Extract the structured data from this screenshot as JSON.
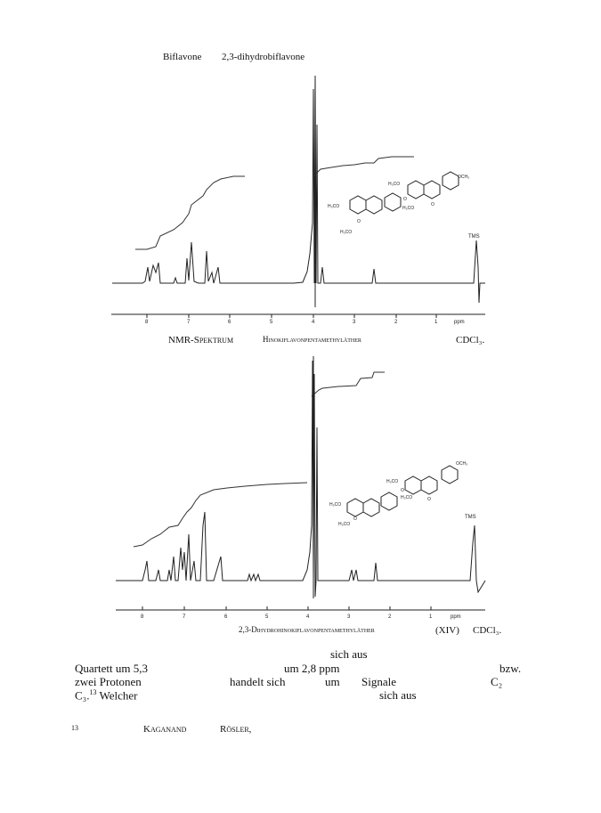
{
  "header": {
    "left": "Biflavone",
    "right": "2,3-dihydrobiflavone"
  },
  "figure1": {
    "caption_a": "NMR-Spektrum",
    "caption_b": "Hinokiflavonpentamethyläther",
    "caption_c": "CDCl₃.",
    "ticks": [
      "8",
      "7",
      "6",
      "5",
      "4",
      "3",
      "2",
      "1",
      "ppm"
    ],
    "tms": "TMS",
    "structure_labels": [
      "H₃CO",
      "H₃CO",
      "H₃CO",
      "H₃CO",
      "OCH₃",
      "O",
      "O",
      "O"
    ]
  },
  "figure2": {
    "caption_a": "2,3-Dihydrohinokiflavonpentamethyläther",
    "caption_b": "(XIV)",
    "caption_c": "CDCl₃.",
    "ticks": [
      "8",
      "7",
      "6",
      "5",
      "4",
      "3",
      "2",
      "1",
      "ppm"
    ],
    "tms": "TMS",
    "structure_labels": [
      "H₃CO",
      "H₃CO",
      "H₃CO",
      "H₃CO",
      "OCH₃",
      "O",
      "O",
      "O"
    ]
  },
  "text": {
    "l1": "sich aus",
    "l2a": "Quartett um 5,3",
    "l2b": "um 2,8 ppm",
    "l2c": "bzw.",
    "l3a": "zwei Protonen",
    "l3b": "handelt sich",
    "l3c": "um",
    "l3d": "Signale",
    "l3e": "C₂",
    "l4a": "C₃.",
    "l4sup": "13",
    "l4b": " Welcher",
    "l4c": "sich aus"
  },
  "footnote": {
    "num": "13",
    "a": "Kaganand",
    "b": "Rösler,"
  }
}
